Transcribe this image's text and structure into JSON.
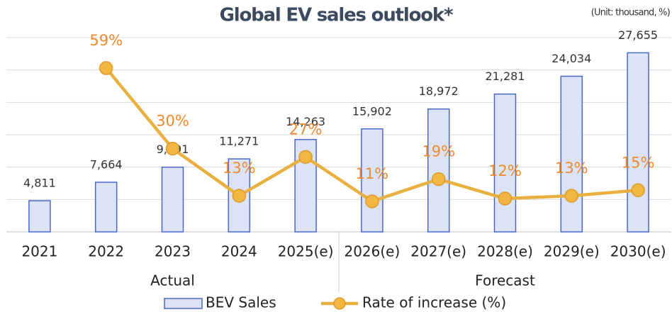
{
  "chart_data": {
    "type": "bar",
    "title": "Global EV sales outlook*",
    "unit_note": "(Unit: thousand, %)",
    "categories": [
      "2021",
      "2022",
      "2023",
      "2024",
      "2025(e)",
      "2026(e)",
      "2027(e)",
      "2028(e)",
      "2029(e)",
      "2030(e)"
    ],
    "groups": [
      {
        "name": "Actual",
        "count": 5
      },
      {
        "name": "Forecast",
        "count": 5
      }
    ],
    "series": [
      {
        "name": "BEV Sales",
        "type": "bar",
        "color": "#dce3f6",
        "stroke": "#4a68c8",
        "values": [
          4811,
          7664,
          9991,
          11271,
          14263,
          15902,
          18972,
          21281,
          24034,
          27655
        ],
        "value_labels": [
          "4,811",
          "7,664",
          "9,991",
          "11,271",
          "14,263",
          "15,902",
          "18,972",
          "21,281",
          "24,034",
          "27,655"
        ]
      },
      {
        "name": "Rate of increase (%)",
        "type": "line",
        "axis": "y2",
        "color": "#e8b13f",
        "label_color": "#f0892c",
        "values": [
          null,
          59,
          30,
          13,
          27,
          11,
          19,
          12,
          13,
          15
        ],
        "value_labels": [
          null,
          "59%",
          "30%",
          "13%",
          "27%",
          "11%",
          "19%",
          "12%",
          "13%",
          "15%"
        ]
      }
    ],
    "ylim": [
      0,
      30000
    ],
    "yticks": [
      0,
      5000,
      10000,
      15000,
      20000,
      25000,
      30000
    ],
    "y2lim": [
      0,
      70
    ],
    "grid": true,
    "legend": "bottom"
  }
}
